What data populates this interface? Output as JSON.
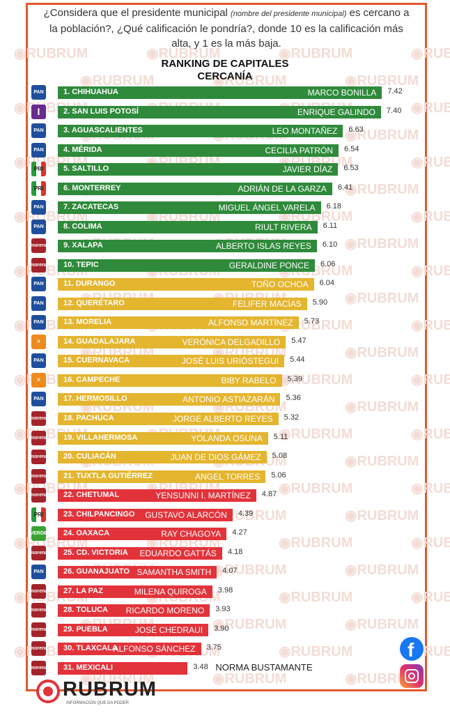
{
  "header": {
    "question_part1": "¿Considera que el presidente municipal ",
    "question_italic": "(nombre del presidente municipal)",
    "question_part2": " es cercano a la población?, ¿Qué calificación le pondría?, donde 10 es la calificación más alta, y 1 es la más baja.",
    "title_line1": "RANKING DE CAPITALES",
    "title_line2": "CERCANÍA"
  },
  "watermark": "RUBRUM",
  "brand": {
    "name": "RUBRUM",
    "tagline": "INFORMACIÓN QUE DA PODER"
  },
  "social": [
    "facebook-icon",
    "instagram-icon"
  ],
  "colors": {
    "green": "#2f8a3b",
    "yellow": "#e4b52f",
    "red": "#e2333b",
    "border": "#e0582c"
  },
  "party_colors": {
    "PAN": "#1f4e9c",
    "I": "#6a2c8e",
    "PRI": "#d9352b",
    "morena": "#a4232b",
    "MC": "#f08a1c",
    "VERDE": "#3aa335"
  },
  "chart_data": {
    "type": "bar",
    "orientation": "horizontal",
    "title": "RANKING DE CAPITALES CERCANÍA",
    "xlim": [
      0,
      10
    ],
    "rows": [
      {
        "rank": "1. CHIHUAHUA",
        "mayor": "MARCO BONILLA",
        "value": 7.42,
        "party": "PAN",
        "tier": "green"
      },
      {
        "rank": "2. SAN LUIS POTOSÍ",
        "mayor": "ENRIQUE GALINDO",
        "value": 7.4,
        "party": "I",
        "tier": "green"
      },
      {
        "rank": "3. AGUASCALIENTES",
        "mayor": "LEO MONTAÑEZ",
        "value": 6.63,
        "party": "PAN",
        "tier": "green"
      },
      {
        "rank": "4. MÉRIDA",
        "mayor": "CECILIA PATRÓN",
        "value": 6.54,
        "party": "PAN",
        "tier": "green"
      },
      {
        "rank": "5. SALTILLO",
        "mayor": "JAVIER DÍAZ",
        "value": 6.53,
        "party": "PRI",
        "tier": "green"
      },
      {
        "rank": "6. MONTERREY",
        "mayor": "ADRIÁN DE LA GARZA",
        "value": 6.41,
        "party": "PRI",
        "tier": "green"
      },
      {
        "rank": "7. ZACATECAS",
        "mayor": "MIGUEL ÁNGEL VARELA",
        "value": 6.18,
        "party": "PAN",
        "tier": "green"
      },
      {
        "rank": "8. COLIMA",
        "mayor": "RIULT RIVERA",
        "value": 6.11,
        "party": "PAN",
        "tier": "green"
      },
      {
        "rank": "9. XALAPA",
        "mayor": "ALBERTO ISLAS REYES",
        "value": 6.1,
        "party": "morena",
        "tier": "green"
      },
      {
        "rank": "10. TEPIC",
        "mayor": "GERALDINE PONCE",
        "value": 6.06,
        "party": "morena",
        "tier": "green"
      },
      {
        "rank": "11. DURANGO",
        "mayor": "TOÑO OCHOA",
        "value": 6.04,
        "party": "PAN",
        "tier": "yellow"
      },
      {
        "rank": "12. QUERÉTARO",
        "mayor": "FELIFER MACÍAS",
        "value": 5.9,
        "party": "PAN",
        "tier": "yellow"
      },
      {
        "rank": "13. MORELIA",
        "mayor": "ALFONSO MARTÍNEZ",
        "value": 5.73,
        "party": "PAN",
        "tier": "yellow"
      },
      {
        "rank": "14. GUADALAJARA",
        "mayor": "VERÓNICA DELGADILLO",
        "value": 5.47,
        "party": "MC",
        "tier": "yellow"
      },
      {
        "rank": "15. CUERNAVACA",
        "mayor": "JOSÉ LUIS URIÓSTEGUI",
        "value": 5.44,
        "party": "PAN",
        "tier": "yellow"
      },
      {
        "rank": "16. CAMPECHE",
        "mayor": "BIBY RABELO",
        "value": 5.39,
        "party": "MC",
        "tier": "yellow"
      },
      {
        "rank": "17. HERMOSILLO",
        "mayor": "ANTONIO ASTIAZARÁN",
        "value": 5.36,
        "party": "PAN",
        "tier": "yellow"
      },
      {
        "rank": "18. PACHUCA",
        "mayor": "JORGE ALBERTO REYES",
        "value": 5.32,
        "party": "morena",
        "tier": "yellow"
      },
      {
        "rank": "19. VILLAHERMOSA",
        "mayor": "YOLANDA OSUNA",
        "value": 5.11,
        "party": "morena",
        "tier": "yellow"
      },
      {
        "rank": "20. CULIACÁN",
        "mayor": "JUAN DE DIOS GÁMEZ",
        "value": 5.08,
        "party": "morena",
        "tier": "yellow"
      },
      {
        "rank": "21. TUXTLA GUTIÉRREZ",
        "mayor": "ANGEL TORRES",
        "value": 5.06,
        "party": "morena",
        "tier": "yellow"
      },
      {
        "rank": "22. CHETUMAL",
        "mayor": "YENSUNNI I. MARTÍNEZ",
        "value": 4.87,
        "party": "morena",
        "tier": "red"
      },
      {
        "rank": "23. CHILPANCINGO",
        "mayor": "GUSTAVO ALARCÓN",
        "value": 4.39,
        "party": "PRI",
        "tier": "red"
      },
      {
        "rank": "24. OAXACA",
        "mayor": "RAY CHAGOYA",
        "value": 4.27,
        "party": "VERDE",
        "tier": "red"
      },
      {
        "rank": "25. CD. VICTORIA",
        "mayor": "EDUARDO GATTÁS",
        "value": 4.18,
        "party": "morena",
        "tier": "red"
      },
      {
        "rank": "26. GUANAJUATO",
        "mayor": "SAMANTHA SMITH",
        "value": 4.07,
        "party": "PAN",
        "tier": "red"
      },
      {
        "rank": "27. LA PAZ",
        "mayor": "MILENA QUIROGA",
        "value": 3.98,
        "party": "morena",
        "tier": "red"
      },
      {
        "rank": "28. TOLUCA",
        "mayor": "RICARDO MORENO",
        "value": 3.93,
        "party": "morena",
        "tier": "red"
      },
      {
        "rank": "29. PUEBLA",
        "mayor": "JOSÉ CHEDRAUI",
        "value": 3.9,
        "party": "morena",
        "tier": "red"
      },
      {
        "rank": "30. TLAXCALA",
        "mayor": "ALFONSO SÁNCHEZ",
        "value": 3.75,
        "party": "morena",
        "tier": "red"
      },
      {
        "rank": "31. MEXICALI",
        "mayor": "NORMA BUSTAMANTE",
        "value": 3.48,
        "party": "morena",
        "tier": "red",
        "mayor_outside": true
      }
    ]
  }
}
